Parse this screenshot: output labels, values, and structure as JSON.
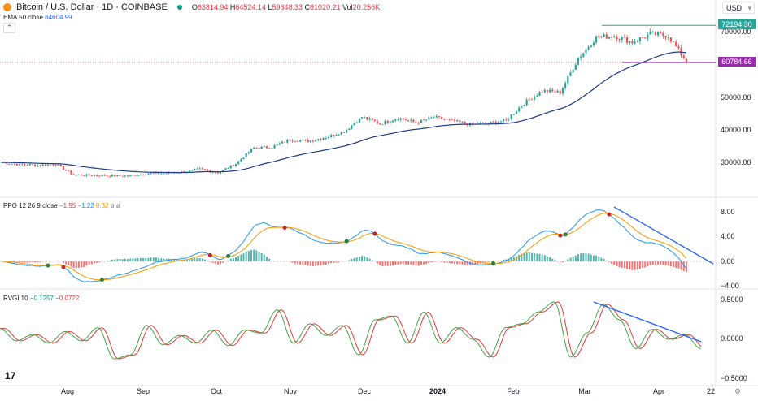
{
  "header": {
    "title": "Bitcoin / U.S. Dollar · 1D · COINBASE",
    "open_label": "O",
    "open": "63814.94",
    "high_label": "H",
    "high": "64524.14",
    "low_label": "L",
    "low": "59648.33",
    "close_label": "C",
    "close": "61020.21",
    "vol_label": "Vol",
    "vol": "20.256K"
  },
  "ema": {
    "label": "EMA 50 close",
    "value": "64604.99"
  },
  "currency": "USD",
  "ppo": {
    "label": "PPO 12 26 9 close",
    "v1": "−1.55",
    "v2": "−1.22",
    "v3": "0.32",
    "extra": "ø ø"
  },
  "rvgi": {
    "label": "RVGI 10",
    "v1": "−0.1257",
    "v2": "−0.0722"
  },
  "price_axis": [
    "70000.00",
    "50000.00",
    "40000.00",
    "30000.00"
  ],
  "price_tags": {
    "resistance": "72194.30",
    "support": "60784.66"
  },
  "ppo_axis": [
    "8.00",
    "4.00",
    "0.00",
    "−4.00"
  ],
  "rvgi_axis": [
    "0.5000",
    "0.0000",
    "−0.5000"
  ],
  "x_axis": [
    "Aug",
    "Sep",
    "Oct",
    "Nov",
    "Dec",
    "2024",
    "Feb",
    "Mar",
    "Apr",
    "22"
  ],
  "colors": {
    "up": "#26a69a",
    "down": "#ef5350",
    "ema": "#2962ff",
    "trend": "#2962ff",
    "resistance": "#26a69a",
    "support": "#9c27b0"
  },
  "chart_data": {
    "type": "candlestick",
    "weekly_closes": [
      30000,
      29300,
      29100,
      29400,
      26100,
      26000,
      25900,
      25800,
      26500,
      26600,
      27000,
      27900,
      26800,
      29600,
      34500,
      34700,
      37000,
      36500,
      37700,
      39500,
      44000,
      41900,
      43700,
      42200,
      43900,
      42800,
      41600,
      42000,
      43000,
      48300,
      52000,
      51600,
      62000,
      68500,
      69000,
      67000,
      69500,
      69000,
      61000
    ],
    "rvgi_values": [
      0.14,
      -0.02,
      0.06,
      -0.05,
      0.1,
      -0.02,
      0.15,
      -0.25,
      -0.2,
      0.18,
      -0.07,
      0.05,
      -0.05,
      0.12,
      -0.08,
      0.12,
      0.08,
      0.38,
      -0.05,
      0.2,
      0.05,
      0.18,
      -0.2,
      0.25,
      0.3,
      -0.05,
      0.35,
      -0.05,
      0.15,
      0,
      -0.23,
      0.15,
      0.2,
      0.35,
      0.48,
      -0.23,
      0.08,
      0.45,
      0.25,
      -0.12,
      0.13,
      0,
      0.06,
      -0.12
    ],
    "price_ylim": [
      22000,
      76000
    ],
    "ppo_ylim": [
      -5,
      9
    ],
    "rvgi_ylim": [
      -0.55,
      0.55
    ]
  }
}
